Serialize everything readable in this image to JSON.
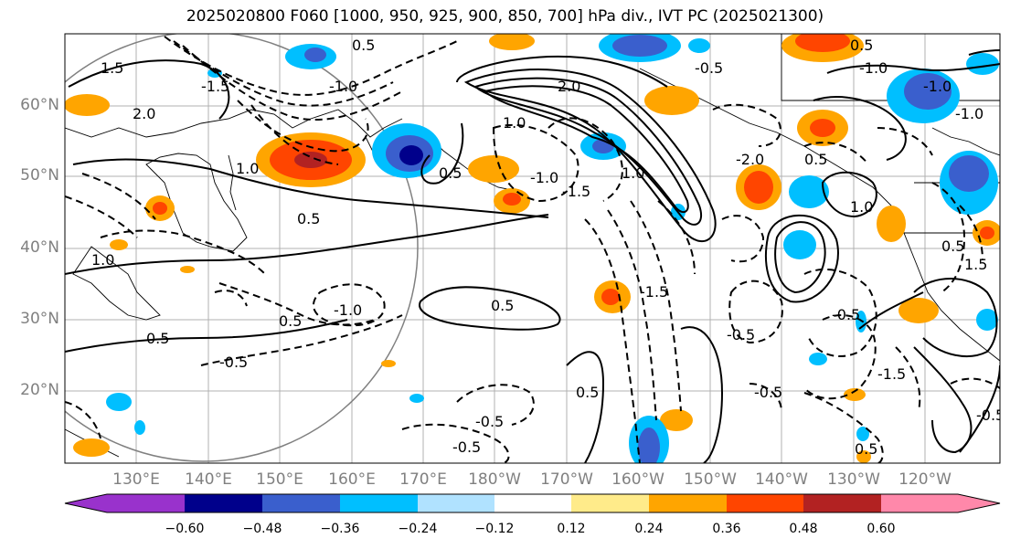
{
  "title": "2025020800 F060 [1000, 950, 925, 900, 850, 700] hPa div., IVT PC (2025021300)",
  "lat_labels": [
    "60°N",
    "50°N",
    "40°N",
    "30°N",
    "20°N"
  ],
  "lon_labels": [
    "130°E",
    "140°E",
    "150°E",
    "160°E",
    "170°E",
    "180°W",
    "170°W",
    "160°W",
    "150°W",
    "140°W",
    "130°W",
    "120°W"
  ],
  "colorbar": {
    "ticks": [
      "−0.60",
      "−0.48",
      "−0.36",
      "−0.24",
      "−0.12",
      "0.12",
      "0.24",
      "0.36",
      "0.48",
      "0.60"
    ],
    "colors": [
      "#9932cc",
      "#00008b",
      "#3a5fcd",
      "#00bfff",
      "#b0e2ff",
      "#ffffff",
      "#ffeb8a",
      "#ffa500",
      "#ff4500",
      "#b22222",
      "#ff88aa"
    ]
  },
  "contour_labels": [
    "1.5",
    "2.0",
    "1.0",
    "0.5",
    "0.5",
    "1.0",
    "-1.0",
    "0.5",
    "-1.5",
    "-0.5",
    "-1.0",
    "0.5",
    "-0.5",
    "-0.5",
    "0.5",
    "-0.5",
    "-1.0",
    "-1.5",
    "0.5",
    "-1.5",
    "1.0",
    "2.0",
    "1.0",
    "-2.0",
    "0.5",
    "-0.5",
    "-1.0",
    "0.5",
    "1.0",
    "-0.5",
    "0.5",
    "-1.0",
    "-0.5",
    "1.5",
    "-1.5",
    "-1.0",
    "0.5",
    "0.5",
    "-0.5"
  ]
}
